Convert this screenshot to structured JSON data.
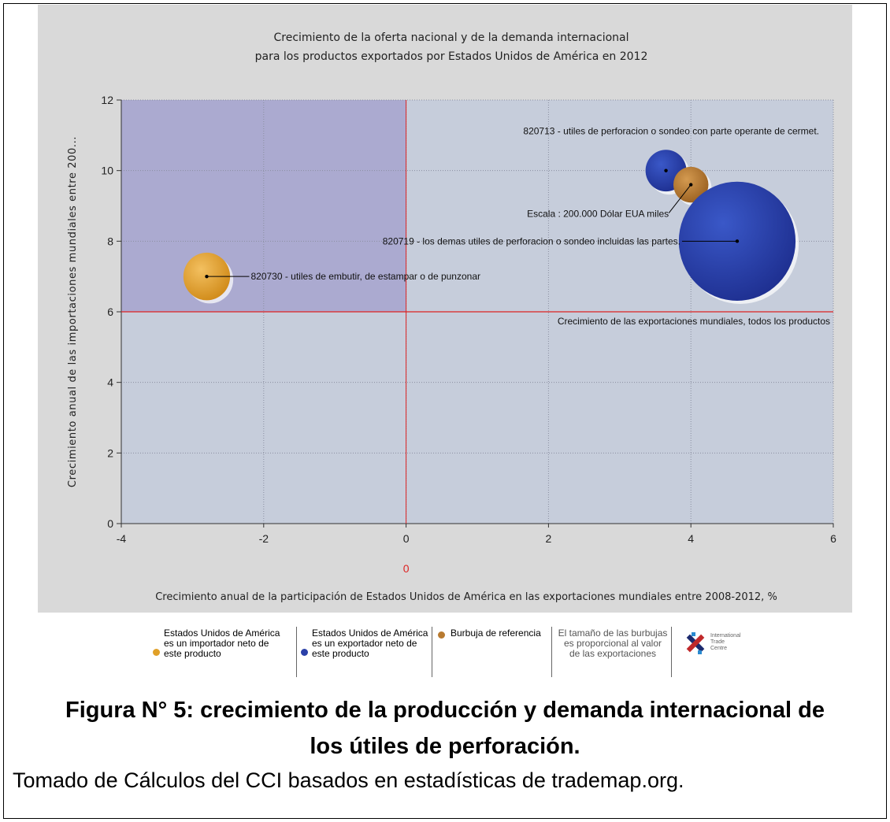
{
  "chart_data": {
    "type": "scatter",
    "title": "Crecimiento de la oferta nacional y de la demanda internacional",
    "subtitle": "para los productos exportados por Estados Unidos de América en 2012",
    "xlabel": "Crecimiento anual de la participación de Estados Unidos de América en las exportaciones mundiales entre 2008-2012, %",
    "ylabel": "Crecimiento anual de las importaciones mundiales entre 200...",
    "xlim": [
      -4,
      6
    ],
    "ylim": [
      0,
      12
    ],
    "x_ticks": [
      "-4",
      "-2",
      "0",
      "2",
      "4",
      "6"
    ],
    "y_ticks": [
      "0",
      "2",
      "4",
      "6",
      "8",
      "10",
      "12"
    ],
    "grid": true,
    "reference_x": 0,
    "reference_x_label": "0",
    "reference_y": 6,
    "reference_y_label": "Crecimiento de las exportaciones mundiales, todos los productos",
    "series": [
      {
        "points": [
          {
            "x": -2.8,
            "y": 7.0,
            "size": 0.8,
            "color": "#e0a028",
            "label": "820730 - utiles de embutir, de estampar o de punzonar"
          },
          {
            "x": 3.65,
            "y": 10.0,
            "size": 0.7,
            "color": "#2a40a8",
            "label": "820713 - utiles de perforacion o sondeo con parte operante de cermet."
          },
          {
            "x": 4.0,
            "y": 9.6,
            "size": 0.6,
            "color": "#b87a30",
            "label": "Escala : 200.000 Dólar EUA miles"
          },
          {
            "x": 4.65,
            "y": 8.0,
            "size": 2.0,
            "color": "#2a40a8",
            "label": "820719 - los demas utiles de perforacion o sondeo incluidas las partes."
          }
        ]
      }
    ],
    "legend": [
      {
        "text": [
          "Estados Unidos de América",
          "es un importador neto de",
          "este producto"
        ],
        "color": "#e0a028"
      },
      {
        "text": [
          "Estados Unidos de América",
          "es un exportador neto de",
          "este producto"
        ],
        "color": "#2a40a8"
      },
      {
        "text": [
          "Burbuja de referencia"
        ],
        "color": "#b87a30"
      },
      {
        "text": [
          "El tamaño de las burbujas",
          "es proporcional al valor",
          "de las exportaciones"
        ]
      }
    ],
    "logo_text": [
      "International",
      "Trade",
      "Centre"
    ],
    "quadrant_colors": {
      "top_left": "#abaad0",
      "other": "#c6cddb"
    }
  },
  "figure": {
    "caption_line1": "Figura N° 5: crecimiento de la producción y demanda internacional de",
    "caption_line2": "los útiles de perforación.",
    "source": "Tomado de Cálculos del CCI basados en estadísticas de trademap.org."
  }
}
